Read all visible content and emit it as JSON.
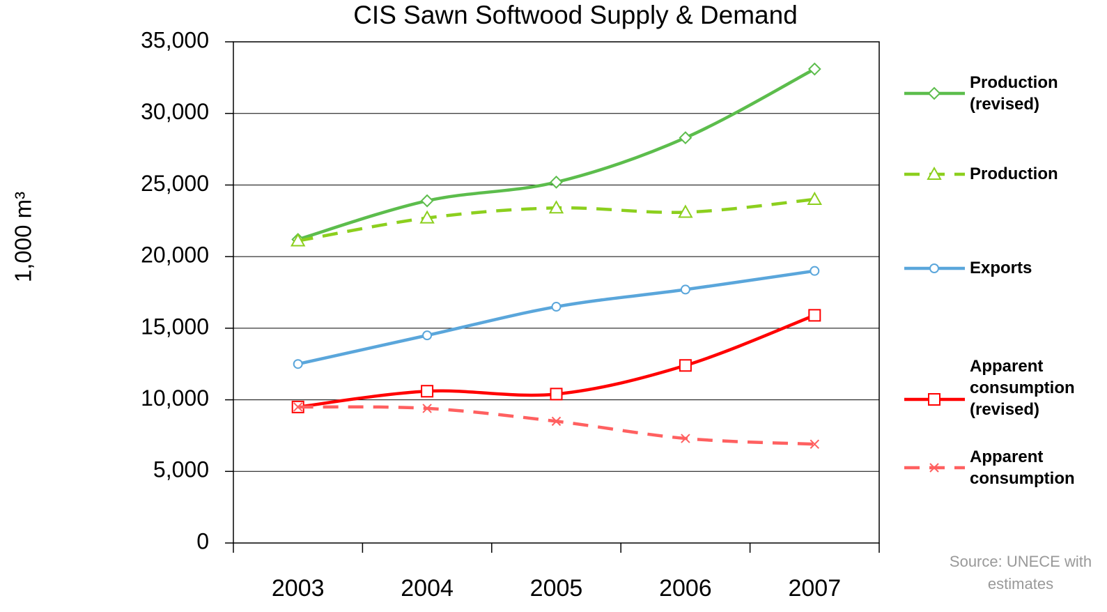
{
  "chart_data": {
    "type": "line",
    "title": "CIS Sawn Softwood Supply & Demand",
    "y_label": "1,000 m³",
    "source": "Source: UNECE with estimates",
    "categories": [
      "2003",
      "2004",
      "2005",
      "2006",
      "2007"
    ],
    "series": [
      {
        "name": "Production (revised)",
        "color": "#5cbd4c",
        "marker": "diamond",
        "dashed": false,
        "values": [
          21200,
          23900,
          25200,
          28300,
          33100
        ]
      },
      {
        "name": "Production",
        "color": "#8ccf1e",
        "marker": "triangle",
        "dashed": true,
        "values": [
          21100,
          22700,
          23400,
          23100,
          24000
        ]
      },
      {
        "name": "Exports",
        "color": "#5aa6db",
        "marker": "circle",
        "dashed": false,
        "values": [
          12500,
          14500,
          16500,
          17700,
          19000
        ]
      },
      {
        "name": "Apparent consumption (revised)",
        "color": "#ff0000",
        "marker": "square",
        "dashed": false,
        "values": [
          9500,
          10600,
          10400,
          12400,
          15900
        ]
      },
      {
        "name": "Apparent consumption",
        "color": "#ff6060",
        "marker": "x",
        "dashed": true,
        "values": [
          9500,
          9400,
          8500,
          7300,
          6900
        ]
      }
    ],
    "ylim": [
      0,
      35000
    ],
    "yticks": [
      0,
      {
        "value": 5000,
        "label": "5,000"
      },
      {
        "value": 10000,
        "label": "10,000"
      },
      {
        "value": 15000,
        "label": "15,000"
      },
      {
        "value": 20000,
        "label": "20,000"
      },
      {
        "value": 25000,
        "label": "25,000"
      },
      {
        "value": 30000,
        "label": "30,000"
      },
      {
        "value": 35000,
        "label": "35,000"
      }
    ],
    "grid": true
  }
}
